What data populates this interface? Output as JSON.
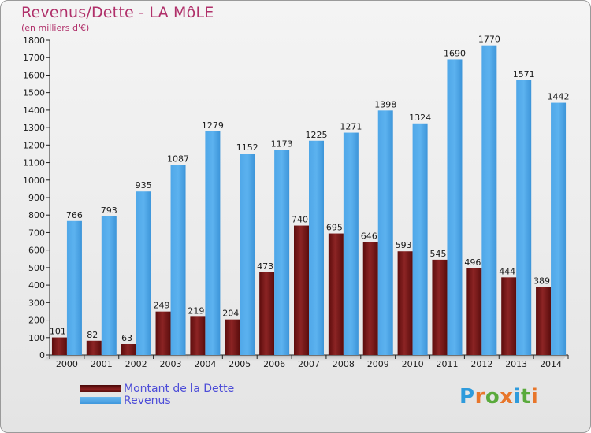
{
  "header": {
    "title": "Revenus/Dette - LA MôLE",
    "subtitle": "(en milliers d'€)"
  },
  "legend": [
    {
      "label": "Montant de la Dette",
      "color": "#7a1818"
    },
    {
      "label": "Revenus",
      "color": "#4aa3e6"
    }
  ],
  "logo": {
    "text": "Proxiti",
    "colors": [
      "#2e9bdc",
      "#e8762b",
      "#5aaa3c",
      "#e8762b",
      "#2e9bdc",
      "#5aaa3c",
      "#e8762b"
    ]
  },
  "colors": {
    "dette": "#7a1818",
    "revenus": "#4aa3e6",
    "title": "#b0306a",
    "legend_text": "#4d4dd8"
  },
  "chart_data": {
    "type": "bar",
    "categories": [
      "2000",
      "2001",
      "2002",
      "2003",
      "2004",
      "2005",
      "2006",
      "2007",
      "2008",
      "2009",
      "2010",
      "2011",
      "2012",
      "2013",
      "2014"
    ],
    "series": [
      {
        "name": "Montant de la Dette",
        "values": [
          101,
          82,
          63,
          249,
          219,
          204,
          473,
          740,
          695,
          646,
          593,
          545,
          496,
          444,
          389
        ]
      },
      {
        "name": "Revenus",
        "values": [
          766,
          793,
          935,
          1087,
          1279,
          1152,
          1173,
          1225,
          1271,
          1398,
          1324,
          1690,
          1770,
          1571,
          1442
        ]
      }
    ],
    "ylim": [
      0,
      1800
    ],
    "yticks": [
      "0",
      "100",
      "200",
      "300",
      "400",
      "500",
      "600",
      "700",
      "800",
      "900",
      "1000",
      "1100",
      "1200",
      "1300",
      "1400",
      "1500",
      "1600",
      "1700",
      "1800"
    ],
    "grid": false,
    "legend_position": "bottom-left"
  }
}
